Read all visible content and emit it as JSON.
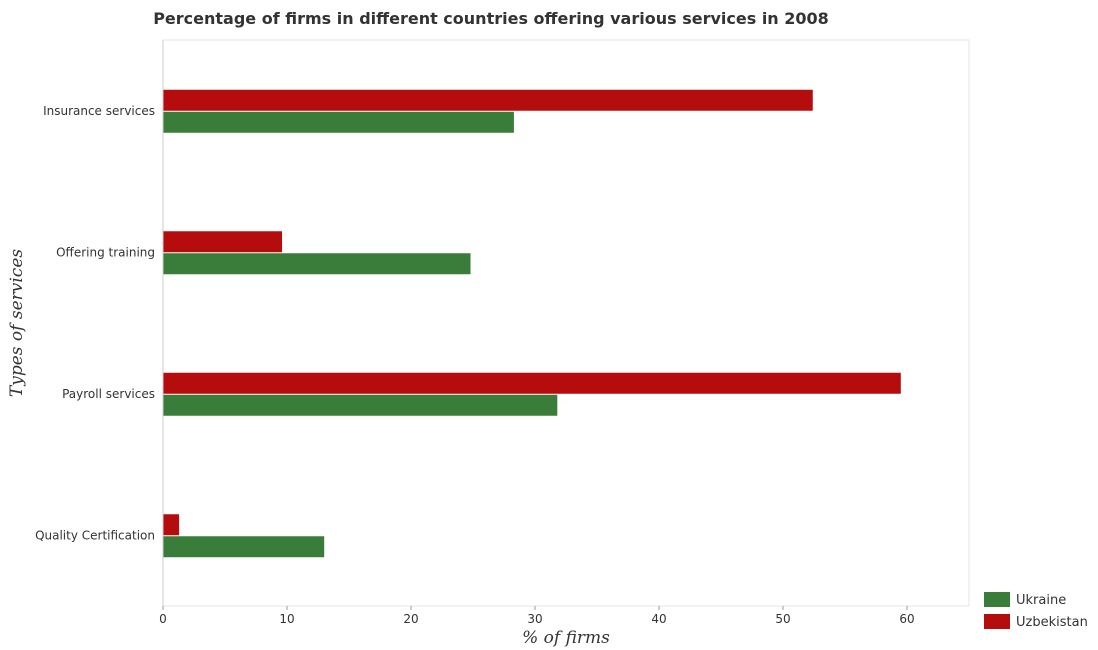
{
  "chart_data": {
    "type": "bar",
    "orientation": "horizontal",
    "title": "Percentage of firms in different countries offering various services in 2008",
    "xlabel": "% of firms",
    "ylabel": "Types of services",
    "categories": [
      "Insurance services",
      "Offering training",
      "Payroll services",
      "Quality Certification"
    ],
    "series": [
      {
        "name": "Ukraine",
        "color": "#3a7d3a",
        "values": [
          28.3,
          24.8,
          31.8,
          13.0
        ]
      },
      {
        "name": "Uzbekistan",
        "color": "#b50d0d",
        "values": [
          52.4,
          9.6,
          59.5,
          1.3
        ]
      }
    ],
    "xlim": [
      0,
      65
    ],
    "xticks": [
      0,
      10,
      20,
      30,
      40,
      50,
      60
    ],
    "grid": false,
    "legend_position": "bottom-right"
  }
}
